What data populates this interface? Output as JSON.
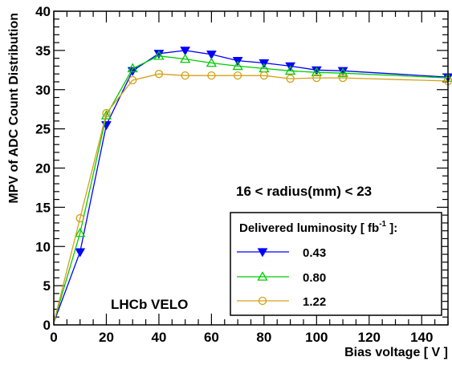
{
  "chart_data": {
    "type": "line",
    "title": "",
    "xlabel": "Bias voltage  [ V ]",
    "ylabel": "MPV of ADC Count Distribution",
    "xlim": [
      0,
      150
    ],
    "ylim": [
      0,
      40
    ],
    "x_ticks": [
      0,
      20,
      40,
      60,
      80,
      100,
      120,
      140
    ],
    "y_ticks": [
      0,
      5,
      10,
      15,
      20,
      25,
      30,
      35,
      40
    ],
    "grid": false,
    "legend_position": "bottom-right",
    "legend_title_main": "Delivered luminosity [ fb",
    "legend_title_exp": "-1",
    "legend_title_end": " ]:",
    "annotations": {
      "radius": "16 < radius(mm) < 23",
      "experiment": "LHCb VELO"
    },
    "series": [
      {
        "name": "0.43",
        "color": "#0000ff",
        "marker": "triangle-down-filled",
        "x": [
          0,
          10,
          20,
          30,
          40,
          50,
          60,
          70,
          80,
          90,
          100,
          110,
          150
        ],
        "y": [
          0.3,
          9.3,
          25.5,
          32.4,
          34.6,
          35.0,
          34.5,
          33.7,
          33.4,
          33.0,
          32.5,
          32.4,
          31.6
        ]
      },
      {
        "name": "0.80",
        "color": "#00cc00",
        "marker": "triangle-up-open",
        "x": [
          0,
          10,
          20,
          30,
          40,
          50,
          60,
          70,
          80,
          90,
          100,
          110,
          150
        ],
        "y": [
          0.3,
          11.7,
          26.7,
          32.7,
          34.3,
          33.9,
          33.4,
          33.0,
          32.7,
          32.4,
          32.2,
          32.1,
          31.5
        ]
      },
      {
        "name": "1.22",
        "color": "#d4a017",
        "marker": "circle-open",
        "x": [
          0,
          10,
          20,
          30,
          40,
          50,
          60,
          70,
          80,
          90,
          100,
          110,
          150
        ],
        "y": [
          0.3,
          13.6,
          27.0,
          31.2,
          32.0,
          31.8,
          31.8,
          31.8,
          31.8,
          31.4,
          31.5,
          31.5,
          31.1
        ]
      }
    ]
  }
}
